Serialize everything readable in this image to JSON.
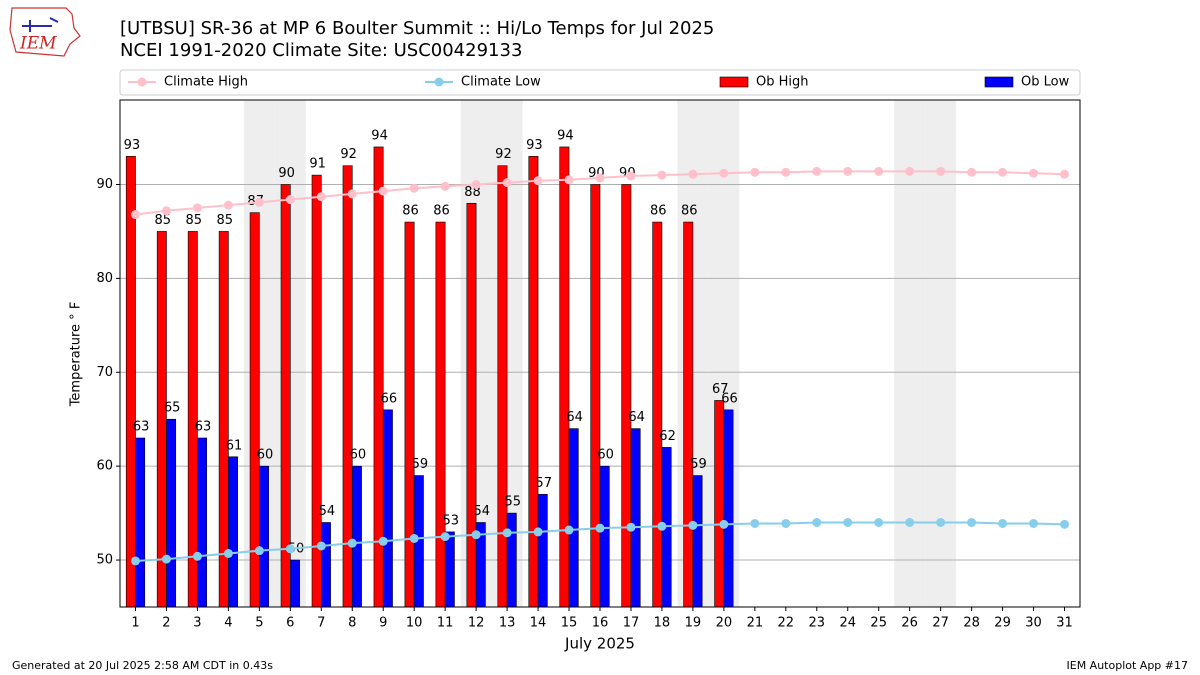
{
  "logo_text": "IEM",
  "footer": {
    "left": "Generated at 20 Jul 2025 2:58 AM CDT in 0.43s",
    "right": "IEM Autoplot App #17"
  },
  "chart_data": {
    "type": "bar",
    "title": "[UTBSU] SR-36 at MP 6 Boulter Summit  :: Hi/Lo Temps for Jul 2025",
    "subtitle": "NCEI 1991-2020 Climate Site: USC00429133",
    "x_label": "July 2025",
    "y_label": "Temperature ° F",
    "categories": [
      "1",
      "2",
      "3",
      "4",
      "5",
      "6",
      "7",
      "8",
      "9",
      "10",
      "11",
      "12",
      "13",
      "14",
      "15",
      "16",
      "17",
      "18",
      "19",
      "20",
      "21",
      "22",
      "23",
      "24",
      "25",
      "26",
      "27",
      "28",
      "29",
      "30",
      "31"
    ],
    "shaded": [
      "5",
      "6",
      "12",
      "13",
      "19",
      "20",
      "26",
      "27"
    ],
    "ylim": [
      45,
      99
    ],
    "yticks": [
      50,
      60,
      70,
      80,
      90
    ],
    "grid": true,
    "series": [
      {
        "name": "Climate High",
        "type": "line",
        "color": "#ffc0cb",
        "values": [
          86.8,
          87.2,
          87.5,
          87.8,
          88.1,
          88.4,
          88.7,
          89.0,
          89.3,
          89.6,
          89.8,
          90.0,
          90.2,
          90.4,
          90.5,
          90.7,
          90.9,
          91.0,
          91.1,
          91.2,
          91.3,
          91.3,
          91.4,
          91.4,
          91.4,
          91.4,
          91.4,
          91.3,
          91.3,
          91.2,
          91.1
        ]
      },
      {
        "name": "Climate Low",
        "type": "line",
        "color": "#87ceeb",
        "values": [
          49.9,
          50.1,
          50.4,
          50.7,
          51.0,
          51.2,
          51.5,
          51.8,
          52.0,
          52.3,
          52.5,
          52.7,
          52.9,
          53.0,
          53.2,
          53.4,
          53.5,
          53.6,
          53.7,
          53.8,
          53.9,
          53.9,
          54.0,
          54.0,
          54.0,
          54.0,
          54.0,
          54.0,
          53.9,
          53.9,
          53.8
        ]
      },
      {
        "name": "Ob High",
        "type": "bar",
        "color": "#ff0000",
        "values": [
          93,
          85,
          85,
          85,
          87,
          90,
          91,
          92,
          94,
          86,
          86,
          88,
          92,
          93,
          94,
          90,
          90,
          86,
          86,
          67,
          null,
          null,
          null,
          null,
          null,
          null,
          null,
          null,
          null,
          null,
          null
        ]
      },
      {
        "name": "Ob Low",
        "type": "bar",
        "color": "#0000ff",
        "values": [
          63,
          65,
          63,
          61,
          60,
          50,
          54,
          60,
          66,
          59,
          53,
          54,
          55,
          57,
          64,
          60,
          64,
          62,
          59,
          66,
          null,
          null,
          null,
          null,
          null,
          null,
          null,
          null,
          null,
          null,
          null
        ]
      }
    ]
  }
}
